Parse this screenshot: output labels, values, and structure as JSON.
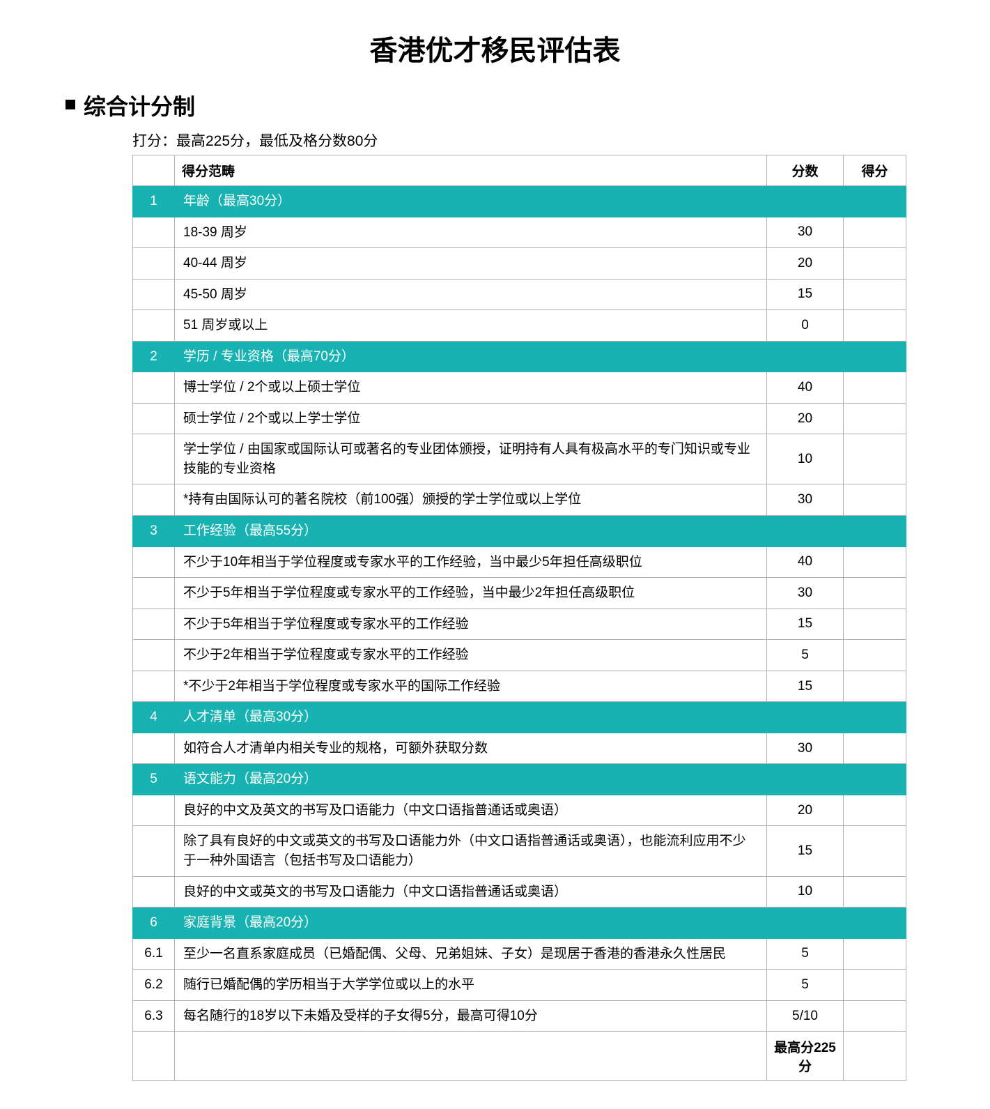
{
  "title": "香港优才移民评估表",
  "section_title": "综合计分制",
  "subtitle": "打分：最高225分，最低及格分数80分",
  "colors": {
    "section_bg": "#18b2b2",
    "section_text": "#ffffff",
    "border": "#b2b2b2",
    "text": "#000000",
    "bg": "#ffffff"
  },
  "columns": {
    "category": "得分范畴",
    "score": "分数",
    "get": "得分"
  },
  "sections": [
    {
      "num": "1",
      "header": "年龄（最高30分）",
      "rows": [
        {
          "num": "",
          "text": "18-39 周岁",
          "score": "30"
        },
        {
          "num": "",
          "text": "40-44 周岁",
          "score": "20"
        },
        {
          "num": "",
          "text": "45-50 周岁",
          "score": "15"
        },
        {
          "num": "",
          "text": "51 周岁或以上",
          "score": "0"
        }
      ]
    },
    {
      "num": "2",
      "header": "学历 / 专业资格（最高70分）",
      "rows": [
        {
          "num": "",
          "text": "博士学位 / 2个或以上硕士学位",
          "score": "40"
        },
        {
          "num": "",
          "text": "硕士学位 / 2个或以上学士学位",
          "score": "20"
        },
        {
          "num": "",
          "text": "学士学位 / 由国家或国际认可或著名的专业团体颁授，证明持有人具有极高水平的专门知识或专业技能的专业资格",
          "score": "10"
        },
        {
          "num": "",
          "text": "*持有由国际认可的著名院校（前100强）颁授的学士学位或以上学位",
          "score": "30"
        }
      ]
    },
    {
      "num": "3",
      "header": "工作经验（最高55分）",
      "rows": [
        {
          "num": "",
          "text": "不少于10年相当于学位程度或专家水平的工作经验，当中最少5年担任高级职位",
          "score": "40"
        },
        {
          "num": "",
          "text": "不少于5年相当于学位程度或专家水平的工作经验，当中最少2年担任高级职位",
          "score": "30"
        },
        {
          "num": "",
          "text": "不少于5年相当于学位程度或专家水平的工作经验",
          "score": "15"
        },
        {
          "num": "",
          "text": "不少于2年相当于学位程度或专家水平的工作经验",
          "score": "5"
        },
        {
          "num": "",
          "text": "*不少于2年相当于学位程度或专家水平的国际工作经验",
          "score": "15"
        }
      ]
    },
    {
      "num": "4",
      "header": "人才清单（最高30分）",
      "rows": [
        {
          "num": "",
          "text": "如符合人才清单内相关专业的规格，可额外获取分数",
          "score": "30"
        }
      ]
    },
    {
      "num": "5",
      "header": "语文能力（最高20分）",
      "rows": [
        {
          "num": "",
          "text": "良好的中文及英文的书写及口语能力（中文口语指普通话或奥语）",
          "score": "20"
        },
        {
          "num": "",
          "text": "除了具有良好的中文或英文的书写及口语能力外（中文口语指普通话或奥语），也能流利应用不少于一种外国语言（包括书写及口语能力）",
          "score": "15"
        },
        {
          "num": "",
          "text": "良好的中文或英文的书写及口语能力（中文口语指普通话或奥语）",
          "score": "10"
        }
      ]
    },
    {
      "num": "6",
      "header": "家庭背景（最高20分）",
      "rows": [
        {
          "num": "6.1",
          "text": "至少一名直系家庭成员（已婚配偶、父母、兄弟姐妹、子女）是现居于香港的香港永久性居民",
          "score": "5"
        },
        {
          "num": "6.2",
          "text": "随行已婚配偶的学历相当于大学学位或以上的水平",
          "score": "5"
        },
        {
          "num": "6.3",
          "text": "每名随行的18岁以下未婚及受样的子女得5分，最高可得10分",
          "score": "5/10"
        }
      ]
    }
  ],
  "footer": {
    "label": "最高分225分"
  }
}
